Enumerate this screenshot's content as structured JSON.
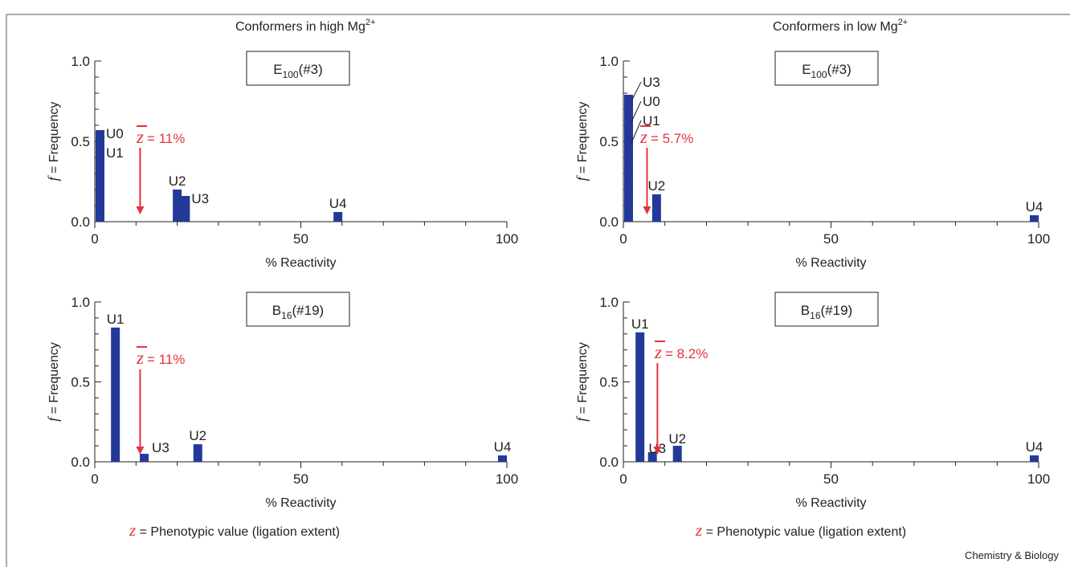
{
  "colors": {
    "bar": "#23399a",
    "accent": "#e5323b",
    "axis": "#222222",
    "frame": "#555555"
  },
  "panel_titles": {
    "left": "Conformers in high Mg",
    "right": "Conformers in low Mg",
    "superscript": "2+"
  },
  "footer": {
    "symbol": "z",
    "caption": " = Phenotypic value (ligation extent)",
    "credit": "Chemistry & Biology"
  },
  "chart_data": [
    {
      "id": "high-E100",
      "type": "bar",
      "label": {
        "main": "E",
        "sub": "100",
        "rest": "(#3)"
      },
      "zbar": {
        "text": "11%",
        "value": 11
      },
      "xlabel": "% Reactivity",
      "ylabel": "Frequency",
      "ylabel_prefix": "f",
      "xlim": [
        0,
        100
      ],
      "ylim": [
        0,
        1
      ],
      "xticks": [
        "0",
        "50",
        "100"
      ],
      "yticks": [
        "0.0",
        "0.5",
        "1.0"
      ],
      "bars": [
        {
          "x": 0,
          "y": 0.57,
          "labels": [
            "U0",
            "U1"
          ]
        },
        {
          "x": 20,
          "y": 0.2,
          "labels": [
            "U2"
          ]
        },
        {
          "x": 22,
          "y": 0.16,
          "labels": [
            "U3"
          ]
        },
        {
          "x": 59,
          "y": 0.06,
          "labels": [
            "U4"
          ]
        }
      ]
    },
    {
      "id": "low-E100",
      "type": "bar",
      "label": {
        "main": "E",
        "sub": "100",
        "rest": "(#3)"
      },
      "zbar": {
        "text": "5.7%",
        "value": 5.7
      },
      "xlabel": "% Reactivity",
      "ylabel": "Frequency",
      "ylabel_prefix": "f",
      "xlim": [
        0,
        100
      ],
      "ylim": [
        0,
        1
      ],
      "xticks": [
        "0",
        "50",
        "100"
      ],
      "yticks": [
        "0.0",
        "0.5",
        "1.0"
      ],
      "bars": [
        {
          "x": 0,
          "y": 0.79,
          "labels": [
            "U3",
            "U0",
            "U1"
          ]
        },
        {
          "x": 8,
          "y": 0.17,
          "labels": [
            "U2"
          ]
        },
        {
          "x": 100,
          "y": 0.04,
          "labels": [
            "U4"
          ]
        }
      ]
    },
    {
      "id": "high-B16",
      "type": "bar",
      "label": {
        "main": "B",
        "sub": "16",
        "rest": "(#19)"
      },
      "zbar": {
        "text": "11%",
        "value": 11
      },
      "xlabel": "% Reactivity",
      "ylabel": "Frequency",
      "ylabel_prefix": "f",
      "xlim": [
        0,
        100
      ],
      "ylim": [
        0,
        1
      ],
      "xticks": [
        "0",
        "50",
        "100"
      ],
      "yticks": [
        "0.0",
        "0.5",
        "1.0"
      ],
      "bars": [
        {
          "x": 5,
          "y": 0.84,
          "labels": [
            "U1"
          ]
        },
        {
          "x": 12,
          "y": 0.05,
          "labels": [
            "U3"
          ]
        },
        {
          "x": 25,
          "y": 0.11,
          "labels": [
            "U2"
          ]
        },
        {
          "x": 99,
          "y": 0.04,
          "labels": [
            "U4"
          ]
        }
      ]
    },
    {
      "id": "low-B16",
      "type": "bar",
      "label": {
        "main": "B",
        "sub": "16",
        "rest": "(#19)"
      },
      "zbar": {
        "text": "8.2%",
        "value": 8.2
      },
      "xlabel": "% Reactivity",
      "ylabel": "Frequency",
      "ylabel_prefix": "f",
      "xlim": [
        0,
        100
      ],
      "ylim": [
        0,
        1
      ],
      "xticks": [
        "0",
        "50",
        "100"
      ],
      "yticks": [
        "0.0",
        "0.5",
        "1.0"
      ],
      "bars": [
        {
          "x": 4,
          "y": 0.81,
          "labels": [
            "U1"
          ]
        },
        {
          "x": 7,
          "y": 0.06,
          "labels": [
            "U3"
          ]
        },
        {
          "x": 13,
          "y": 0.1,
          "labels": [
            "U2"
          ]
        },
        {
          "x": 100,
          "y": 0.04,
          "labels": [
            "U4"
          ]
        }
      ]
    }
  ]
}
